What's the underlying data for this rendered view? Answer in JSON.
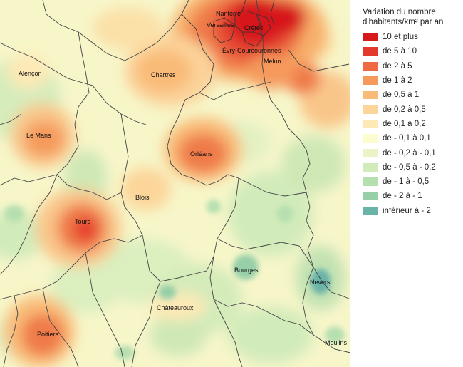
{
  "legend": {
    "title_line1": "Variation du nombre",
    "title_line2": "d'habitants/km² par an",
    "items": [
      {
        "label": "10 et plus",
        "color": "#d7191c"
      },
      {
        "label": "de 5 à 10",
        "color": "#e4382c"
      },
      {
        "label": "de 2 à 5",
        "color": "#ee6a43"
      },
      {
        "label": "de 1 à 2",
        "color": "#f59a5c"
      },
      {
        "label": "de 0,5 à 1",
        "color": "#f9bb78"
      },
      {
        "label": "de 0,2 à 0,5",
        "color": "#fcd59a"
      },
      {
        "label": "de 0,1 à 0,2",
        "color": "#fde9b6"
      },
      {
        "label": "de - 0,1 à 0,1",
        "color": "#fdfcce"
      },
      {
        "label": "de - 0,2 à - 0,1",
        "color": "#eaf4c6"
      },
      {
        "label": "de - 0,5 à - 0,2",
        "color": "#d2ebba"
      },
      {
        "label": "de - 1 à - 0,5",
        "color": "#b6dfb0"
      },
      {
        "label": "de - 2 à - 1",
        "color": "#96cfa8"
      },
      {
        "label": "inférieur à - 2",
        "color": "#6ab3a8"
      }
    ]
  },
  "cities": [
    {
      "id": "nanterre",
      "name": "Nanterre"
    },
    {
      "id": "versailles",
      "name": "Versailles"
    },
    {
      "id": "creteil",
      "name": "Créteil"
    },
    {
      "id": "evry",
      "name": "Évry-Courcouronnes"
    },
    {
      "id": "melun",
      "name": "Melun"
    },
    {
      "id": "alencon",
      "name": "Alençon"
    },
    {
      "id": "chartres",
      "name": "Chartres"
    },
    {
      "id": "lemans",
      "name": "Le Mans"
    },
    {
      "id": "orleans",
      "name": "Orléans"
    },
    {
      "id": "blois",
      "name": "Blois"
    },
    {
      "id": "tours",
      "name": "Tours"
    },
    {
      "id": "bourges",
      "name": "Bourges"
    },
    {
      "id": "nevers",
      "name": "Nevers"
    },
    {
      "id": "chateauroux",
      "name": "Châteauroux"
    },
    {
      "id": "poitiers",
      "name": "Poitiers"
    },
    {
      "id": "moulins",
      "name": "Moulins"
    }
  ]
}
